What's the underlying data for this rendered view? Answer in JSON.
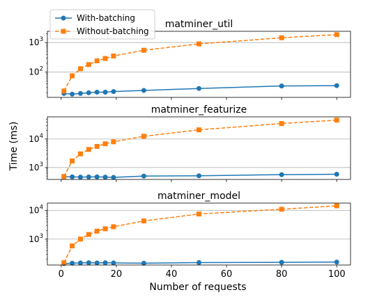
{
  "figure": {
    "ylabel": "Time (ms)",
    "xlabel": "Number of requests",
    "legend": {
      "placement": "top-left",
      "entries": [
        {
          "label": "With-batching",
          "color": "#1f77b4",
          "marker": "circle",
          "linestyle": "solid"
        },
        {
          "label": "Without-batching",
          "color": "#ff7f0e",
          "marker": "square",
          "linestyle": "dashed"
        }
      ]
    }
  },
  "chart_data": [
    {
      "type": "line",
      "title": "matminer_util",
      "yscale": "log",
      "ylim": [
        14,
        2400
      ],
      "xlim": [
        -5,
        105
      ],
      "grid": "horizontal",
      "yticks": [
        {
          "value": 100,
          "base": "10",
          "exp": "2"
        },
        {
          "value": 1000,
          "base": "10",
          "exp": "3"
        }
      ],
      "xticks": [
        0,
        20,
        40,
        60,
        80,
        100
      ],
      "show_xticklabels": false,
      "x": [
        1,
        4,
        7,
        10,
        13,
        16,
        19,
        30,
        50,
        80,
        100
      ],
      "series": [
        {
          "name": "With-batching",
          "values": [
            19,
            18,
            19,
            20,
            21,
            21,
            22,
            24,
            28,
            34,
            35
          ]
        },
        {
          "name": "Without-batching",
          "values": [
            23,
            75,
            130,
            180,
            240,
            290,
            350,
            550,
            900,
            1450,
            1850
          ]
        }
      ]
    },
    {
      "type": "line",
      "title": "matminer_featurize",
      "yscale": "log",
      "ylim": [
        380,
        60000
      ],
      "xlim": [
        -5,
        105
      ],
      "grid": "horizontal",
      "yticks": [
        {
          "value": 1000,
          "base": "10",
          "exp": "3"
        },
        {
          "value": 10000,
          "base": "10",
          "exp": "4"
        }
      ],
      "xticks": [
        0,
        20,
        40,
        60,
        80,
        100
      ],
      "show_xticklabels": false,
      "x": [
        1,
        4,
        7,
        10,
        13,
        16,
        19,
        30,
        50,
        80,
        100
      ],
      "series": [
        {
          "name": "With-batching",
          "values": [
            480,
            470,
            460,
            465,
            470,
            460,
            450,
            500,
            510,
            560,
            580
          ]
        },
        {
          "name": "Without-batching",
          "values": [
            480,
            1700,
            3000,
            4300,
            5500,
            6800,
            8000,
            12500,
            21000,
            35000,
            46000
          ]
        }
      ]
    },
    {
      "type": "line",
      "title": "matminer_model",
      "yscale": "log",
      "ylim": [
        125,
        18000
      ],
      "xlim": [
        -5,
        105
      ],
      "grid": "horizontal",
      "yticks": [
        {
          "value": 1000,
          "base": "10",
          "exp": "3"
        },
        {
          "value": 10000,
          "base": "10",
          "exp": "4"
        }
      ],
      "xticks": [
        0,
        20,
        40,
        60,
        80,
        100
      ],
      "show_xticklabels": true,
      "x": [
        1,
        4,
        7,
        10,
        13,
        16,
        19,
        30,
        50,
        80,
        100
      ],
      "series": [
        {
          "name": "With-batching",
          "values": [
            140,
            145,
            148,
            150,
            148,
            150,
            148,
            145,
            152,
            155,
            158
          ]
        },
        {
          "name": "Without-batching",
          "values": [
            150,
            580,
            1000,
            1450,
            1900,
            2300,
            2700,
            4300,
            7500,
            11000,
            14500
          ]
        }
      ]
    }
  ]
}
